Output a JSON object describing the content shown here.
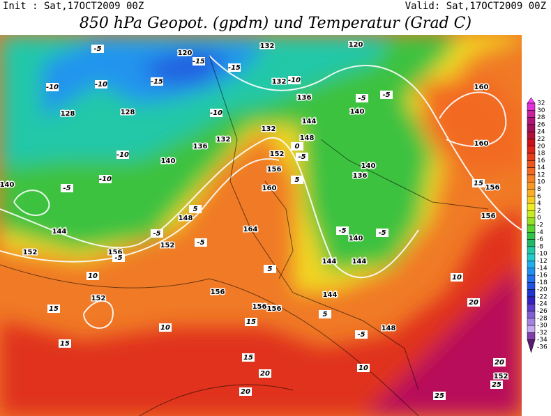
{
  "header": {
    "init": "Init : Sat,17OCT2009 00Z",
    "valid": "Valid: Sat,17OCT2009 00Z",
    "title": "850 hPa Geopot. (gpdm) und Temperatur (Grad C)"
  },
  "colorbar": {
    "levels": [
      32,
      30,
      28,
      26,
      24,
      22,
      20,
      18,
      16,
      14,
      12,
      10,
      8,
      6,
      4,
      2,
      0,
      -2,
      -4,
      -6,
      -8,
      -10,
      -12,
      -14,
      -16,
      -18,
      -20,
      -22,
      -24,
      -26,
      -28,
      -30,
      -32,
      -34,
      -36
    ],
    "colors": [
      "#ff40ff",
      "#e030d8",
      "#c8209e",
      "#b01478",
      "#a0105a",
      "#b01038",
      "#cc1018",
      "#dc2418",
      "#e63c1c",
      "#ee5420",
      "#f26a22",
      "#f68024",
      "#f89826",
      "#faae26",
      "#f6cc24",
      "#eeec22",
      "#c8ec22",
      "#96e024",
      "#5cd22e",
      "#30c444",
      "#22b866",
      "#22c8a4",
      "#22cccc",
      "#22aee8",
      "#228ef0",
      "#2270ee",
      "#2252e0",
      "#2234d0",
      "#3422c0",
      "#5c3ccc",
      "#8060d0",
      "#a484e0",
      "#c4a8f0",
      "#8040a8",
      "#5a1a70"
    ]
  },
  "contour_labels": {
    "geopotential": [
      "120",
      "132",
      "120",
      "128",
      "128",
      "136",
      "132",
      "140",
      "132",
      "136",
      "140",
      "144",
      "148",
      "152",
      "156",
      "160",
      "140",
      "140",
      "164",
      "148",
      "144",
      "152",
      "156",
      "152",
      "156",
      "156",
      "144",
      "144",
      "148",
      "160",
      "160",
      "156",
      "156",
      "152",
      "140",
      "136",
      "132",
      "144",
      "156",
      "152"
    ],
    "temperature": [
      "-15",
      "-15",
      "-10",
      "-10",
      "-10",
      "-5",
      "-15",
      "-10",
      "-5",
      "-10",
      "-10",
      "-5",
      "-5",
      "-5",
      "-5",
      "-5",
      "-5",
      "-5",
      "0",
      "5",
      "5",
      "5",
      "10",
      "10",
      "10",
      "15",
      "15",
      "15",
      "15",
      "15",
      "20",
      "20",
      "20",
      "20",
      "25",
      "25",
      "5",
      "10",
      "-5",
      "-5"
    ]
  }
}
